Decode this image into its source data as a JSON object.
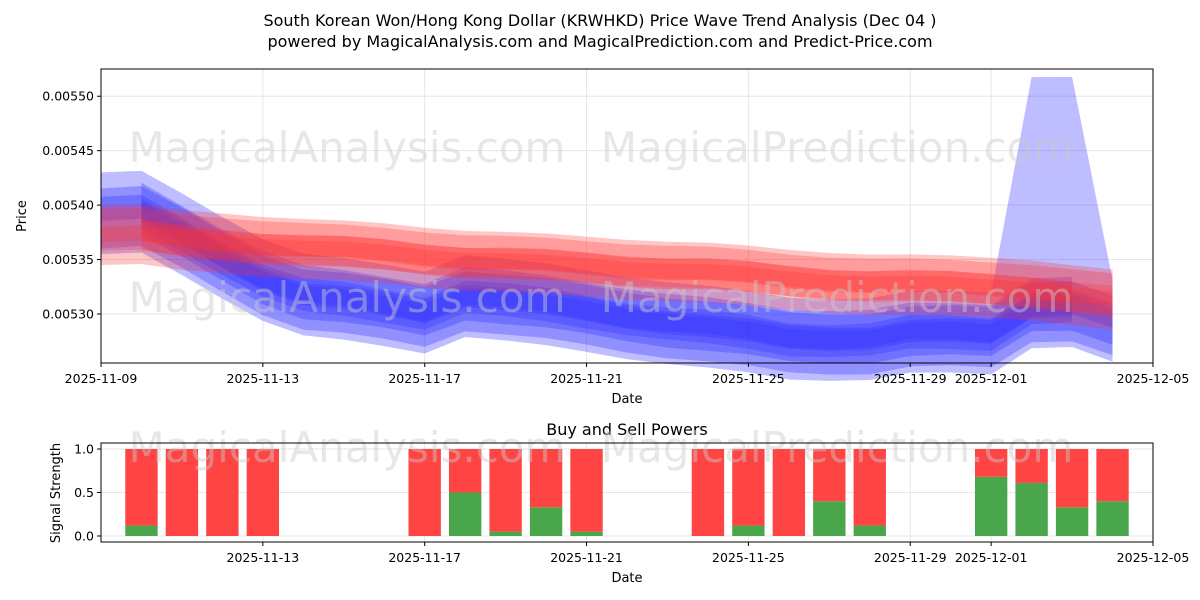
{
  "title_line1": "South Korean Won/Hong Kong Dollar (KRWHKD) Price Wave Trend Analysis (Dec 04 )",
  "title_line2": "powered by MagicalAnalysis.com and MagicalPrediction.com and Predict-Price.com",
  "watermarks": [
    "MagicalAnalysis.com",
    "MagicalPrediction.com"
  ],
  "colors": {
    "blue": "#3333ff",
    "red": "#ff3333",
    "buy": "#4aa64a",
    "sell": "#ff4444",
    "purple": "#8a1a9a"
  },
  "chart_data": [
    {
      "type": "area",
      "title": "",
      "xlabel": "Date",
      "ylabel": "Price",
      "xlim": [
        "2025-11-09T00:00",
        "2025-12-05T00:00"
      ],
      "ylim": [
        0.005255,
        0.005525
      ],
      "xticks": [
        "2025-11-09",
        "2025-11-13",
        "2025-11-17",
        "2025-11-21",
        "2025-11-25",
        "2025-11-29",
        "2025-12-01",
        "2025-12-05"
      ],
      "yticks": [
        "0.00530",
        "0.00535",
        "0.00540",
        "0.00545",
        "0.00550"
      ],
      "dates": [
        "2025-11-09",
        "2025-11-10",
        "2025-11-11",
        "2025-11-12",
        "2025-11-13",
        "2025-11-14",
        "2025-11-15",
        "2025-11-16",
        "2025-11-17",
        "2025-11-18",
        "2025-11-19",
        "2025-11-20",
        "2025-11-21",
        "2025-11-22",
        "2025-11-23",
        "2025-11-24",
        "2025-11-25",
        "2025-11-26",
        "2025-11-27",
        "2025-11-28",
        "2025-11-29",
        "2025-11-30",
        "2025-12-01",
        "2025-12-02",
        "2025-12-03",
        "2025-12-04"
      ],
      "series": [
        {
          "name": "Blue waves",
          "color": "#3333ff",
          "center": [
            0.005395,
            0.005395,
            0.005375,
            0.005355,
            0.005335,
            0.00532,
            0.005315,
            0.00531,
            0.005305,
            0.00532,
            0.005315,
            0.00531,
            0.005305,
            0.0053,
            0.005295,
            0.00529,
            0.005285,
            0.00528,
            0.00528,
            0.00528,
            0.005285,
            0.005285,
            0.005285,
            0.00531,
            0.00531,
            0.005295
          ],
          "spike": {
            "from": "2025-12-01",
            "to": "2025-12-04",
            "peak": 0.00553
          }
        },
        {
          "name": "Red waves",
          "color": "#ff3333",
          "center": [
            0.005375,
            0.005375,
            0.00537,
            0.005368,
            0.005365,
            0.005362,
            0.00536,
            0.005358,
            0.005355,
            0.005352,
            0.00535,
            0.005348,
            0.005346,
            0.005344,
            0.005342,
            0.00534,
            0.005337,
            0.005334,
            0.005332,
            0.00533,
            0.005329,
            0.005328,
            0.005327,
            0.005325,
            0.00532,
            0.005315
          ]
        }
      ]
    },
    {
      "type": "bar",
      "title": "Buy and Sell Powers",
      "xlabel": "Date",
      "ylabel": "Signal Strength",
      "ylim": [
        0,
        1.0
      ],
      "yticks": [
        "0.0",
        "0.5",
        "1.0"
      ],
      "xticks": [
        "2025-11-13",
        "2025-11-17",
        "2025-11-21",
        "2025-11-25",
        "2025-11-29",
        "2025-12-01",
        "2025-12-05"
      ],
      "series": [
        {
          "name": "Buy",
          "color": "#4aa64a"
        },
        {
          "name": "Sell",
          "color": "#ff4444"
        }
      ],
      "bars": [
        {
          "date": "2025-11-10",
          "buy": 0.12,
          "sell": 0.88
        },
        {
          "date": "2025-11-11",
          "buy": 0.0,
          "sell": 1.0
        },
        {
          "date": "2025-11-12",
          "buy": 0.0,
          "sell": 1.0
        },
        {
          "date": "2025-11-13",
          "buy": 0.0,
          "sell": 1.0
        },
        {
          "date": "2025-11-17",
          "buy": 0.0,
          "sell": 1.0
        },
        {
          "date": "2025-11-18",
          "buy": 0.5,
          "sell": 0.5
        },
        {
          "date": "2025-11-19",
          "buy": 0.05,
          "sell": 0.95
        },
        {
          "date": "2025-11-20",
          "buy": 0.33,
          "sell": 0.67
        },
        {
          "date": "2025-11-21",
          "buy": 0.05,
          "sell": 0.95
        },
        {
          "date": "2025-11-24",
          "buy": 0.0,
          "sell": 1.0
        },
        {
          "date": "2025-11-25",
          "buy": 0.12,
          "sell": 0.88
        },
        {
          "date": "2025-11-26",
          "buy": 0.0,
          "sell": 1.0
        },
        {
          "date": "2025-11-27",
          "buy": 0.4,
          "sell": 0.6
        },
        {
          "date": "2025-11-28",
          "buy": 0.12,
          "sell": 0.88
        },
        {
          "date": "2025-12-01",
          "buy": 0.68,
          "sell": 0.32
        },
        {
          "date": "2025-12-02",
          "buy": 0.61,
          "sell": 0.39
        },
        {
          "date": "2025-12-03",
          "buy": 0.33,
          "sell": 0.67
        },
        {
          "date": "2025-12-04",
          "buy": 0.4,
          "sell": 0.6
        }
      ]
    }
  ]
}
